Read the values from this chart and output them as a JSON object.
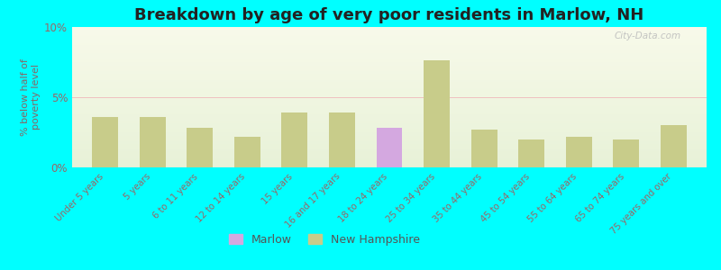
{
  "title": "Breakdown by age of very poor residents in Marlow, NH",
  "ylabel": "% below half of\npoverty level",
  "categories": [
    "Under 5 years",
    "5 years",
    "6 to 11 years",
    "12 to 14 years",
    "15 years",
    "16 and 17 years",
    "18 to 24 years",
    "25 to 34 years",
    "35 to 44 years",
    "45 to 54 years",
    "55 to 64 years",
    "65 to 74 years",
    "75 years and over"
  ],
  "marlow_values": [
    0,
    0,
    0,
    0,
    0,
    0,
    2.8,
    0,
    0,
    0,
    0,
    0,
    0
  ],
  "nh_values": [
    3.6,
    3.6,
    2.8,
    2.2,
    3.9,
    3.9,
    0,
    7.6,
    2.7,
    2.0,
    2.2,
    2.0,
    3.0
  ],
  "marlow_color": "#d4a8e0",
  "nh_color": "#c8cc8a",
  "background_color": "#00ffff",
  "plot_bg_top": "#f8faea",
  "plot_bg_bottom": "#e8f2d8",
  "ylim": [
    0,
    10
  ],
  "yticks": [
    0,
    5,
    10
  ],
  "ytick_labels": [
    "0%",
    "5%",
    "10%"
  ],
  "title_fontsize": 13,
  "bar_width": 0.55,
  "legend_labels": [
    "Marlow",
    "New Hampshire"
  ],
  "watermark": "City-Data.com",
  "tick_color": "#996666",
  "ylabel_color": "#886666"
}
